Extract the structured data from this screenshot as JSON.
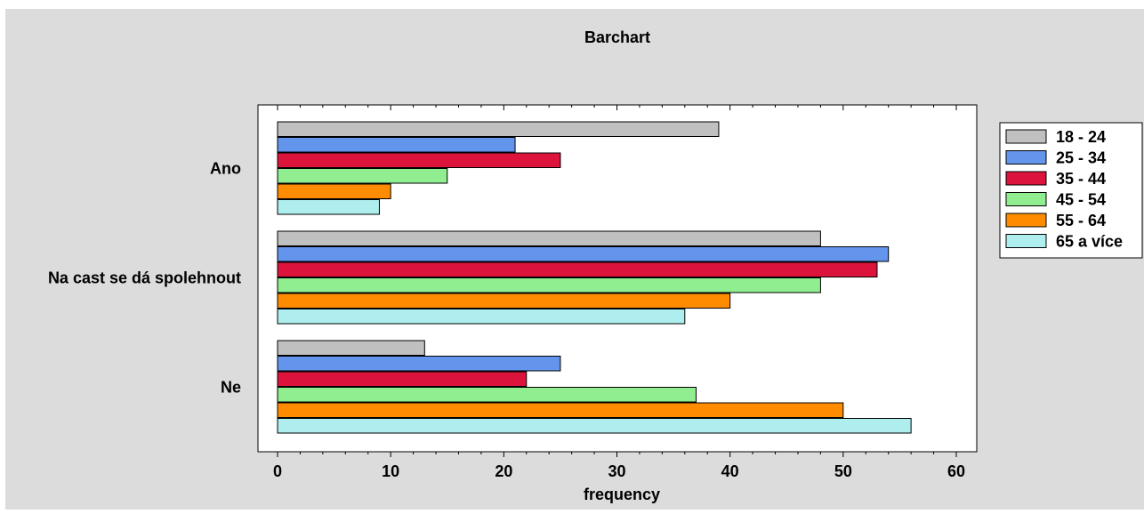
{
  "chart_data": {
    "type": "bar",
    "orientation": "horizontal",
    "title": "Barchart",
    "xlabel": "frequency",
    "ylabel": "",
    "xlim": [
      0,
      60
    ],
    "x_ticks": [
      "0",
      "10",
      "20",
      "30",
      "40",
      "50",
      "60"
    ],
    "categories": [
      "Ano",
      "Na cast se dá spolehnout",
      "Ne"
    ],
    "series": [
      {
        "name": "18 - 24",
        "color": "#c0c0c0",
        "values": [
          39,
          48,
          13
        ]
      },
      {
        "name": "25 - 34",
        "color": "#6495ed",
        "values": [
          21,
          54,
          25
        ]
      },
      {
        "name": "35 - 44",
        "color": "#dc143c",
        "values": [
          25,
          53,
          22
        ]
      },
      {
        "name": "45 - 54",
        "color": "#90ee90",
        "values": [
          15,
          48,
          37
        ]
      },
      {
        "name": "55 - 64",
        "color": "#ff8c00",
        "values": [
          10,
          40,
          50
        ]
      },
      {
        "name": "65 a více",
        "color": "#afeeee",
        "values": [
          9,
          36,
          56
        ]
      }
    ],
    "grid": false,
    "legend_position": "right",
    "background": "#dcdcdc",
    "plot_background": "#ffffff"
  }
}
